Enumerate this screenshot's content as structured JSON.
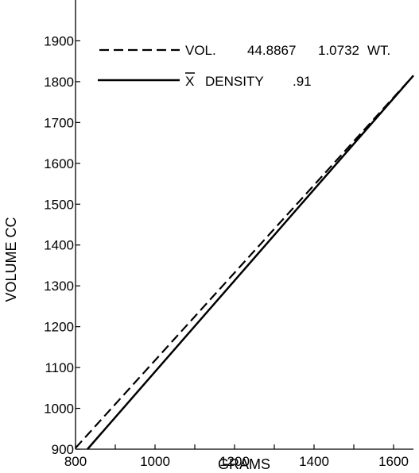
{
  "chart_data": {
    "type": "line",
    "xlabel": "GRAMS",
    "ylabel": "VOLUME CC",
    "xlim": [
      800,
      1650
    ],
    "ylim": [
      900,
      2000
    ],
    "x_ticks": [
      "800",
      "1000",
      "1200",
      "1400",
      "1600"
    ],
    "y_ticks": [
      "900",
      "1000",
      "1100",
      "1200",
      "1300",
      "1400",
      "1500",
      "1600",
      "1700",
      "1800",
      "1900"
    ],
    "grid": false,
    "legend_position": "top-left",
    "series": [
      {
        "name": "VOL. 44.8867 1.0732 WT.",
        "style": "dashed",
        "x": [
          800,
          1650
        ],
        "y": [
          903,
          1815
        ]
      },
      {
        "name": "X DENSITY .91",
        "style": "solid",
        "x": [
          830,
          1650
        ],
        "y": [
          900,
          1815
        ]
      }
    ],
    "legend": {
      "dashed": {
        "label_vol": "VOL.",
        "value_1": "44.8867",
        "value_2": "1.0732",
        "label_wt": "WT."
      },
      "solid": {
        "label_x": "X",
        "label_density": "DENSITY",
        "value": ".91"
      }
    }
  }
}
